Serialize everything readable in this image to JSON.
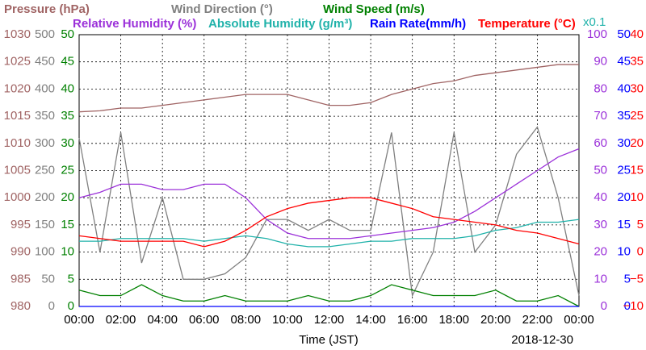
{
  "chart_data": {
    "type": "line",
    "xlabel": "Time (JST)",
    "date": "2018-12-30",
    "note": "x0.1",
    "x": [
      0,
      1,
      2,
      3,
      4,
      5,
      6,
      7,
      8,
      9,
      10,
      11,
      12,
      13,
      14,
      15,
      16,
      17,
      18,
      19,
      20,
      21,
      22,
      23,
      24
    ],
    "xlim": [
      0,
      24
    ],
    "xticks": [
      {
        "value": 0,
        "label": "00:00"
      },
      {
        "value": 2,
        "label": "02:00"
      },
      {
        "value": 4,
        "label": "04:00"
      },
      {
        "value": 6,
        "label": "06:00"
      },
      {
        "value": 8,
        "label": "08:00"
      },
      {
        "value": 10,
        "label": "10:00"
      },
      {
        "value": 12,
        "label": "12:00"
      },
      {
        "value": 14,
        "label": "14:00"
      },
      {
        "value": 16,
        "label": "16:00"
      },
      {
        "value": 18,
        "label": "18:00"
      },
      {
        "value": 20,
        "label": "20:00"
      },
      {
        "value": 22,
        "label": "22:00"
      },
      {
        "value": 24,
        "label": "00:00"
      }
    ],
    "grid": true,
    "axes": [
      {
        "side": "left",
        "color": "#a06464",
        "lim": [
          980,
          1030
        ],
        "ticks": [
          980,
          985,
          990,
          995,
          1000,
          1005,
          1010,
          1015,
          1020,
          1025,
          1030
        ]
      },
      {
        "side": "left",
        "color": "#808080",
        "lim": [
          0,
          500
        ],
        "ticks": [
          0,
          50,
          100,
          150,
          200,
          250,
          300,
          350,
          400,
          450,
          500
        ]
      },
      {
        "side": "left",
        "color": "#008000",
        "lim": [
          0,
          50
        ],
        "ticks": [
          0,
          5,
          10,
          15,
          20,
          25,
          30,
          35,
          40,
          45,
          50
        ]
      },
      {
        "side": "right",
        "color": "#9b30d9",
        "lim": [
          0,
          100
        ],
        "ticks": [
          0,
          10,
          20,
          30,
          40,
          50,
          60,
          70,
          80,
          90,
          100
        ]
      },
      {
        "side": "right",
        "color": "#0000ff",
        "lim": [
          0,
          50
        ],
        "ticks": [
          0,
          5,
          10,
          15,
          20,
          25,
          30,
          35,
          40,
          45,
          50
        ]
      },
      {
        "side": "right",
        "color": "#ff0000",
        "lim": [
          -10,
          40
        ],
        "ticks": [
          {
            "value": -10,
            "label": "−10"
          },
          {
            "value": -5,
            "label": "−5"
          },
          0,
          5,
          10,
          15,
          20,
          25,
          30,
          35,
          40
        ]
      }
    ],
    "series": [
      {
        "name": "Pressure (hPa)",
        "color": "#a06464",
        "axis": 0,
        "values": [
          1015.8,
          1016,
          1016.5,
          1016.5,
          1017,
          1017.5,
          1018,
          1018.5,
          1019,
          1019,
          1019,
          1018,
          1017,
          1017,
          1017.5,
          1019,
          1020,
          1021,
          1021.5,
          1022.5,
          1023,
          1023.5,
          1024,
          1024.5,
          1024.5
        ]
      },
      {
        "name": "Wind Direction (°)",
        "color": "#808080",
        "axis": 1,
        "values": [
          310,
          100,
          320,
          80,
          200,
          50,
          50,
          60,
          90,
          160,
          160,
          140,
          160,
          140,
          140,
          320,
          20,
          100,
          320,
          100,
          150,
          280,
          330,
          200,
          20
        ]
      },
      {
        "name": "Wind Speed (m/s)",
        "color": "#008000",
        "axis": 2,
        "values": [
          3,
          2,
          2,
          4,
          2,
          1,
          1,
          2,
          1,
          1,
          1,
          2,
          1,
          1,
          2,
          4,
          3,
          2,
          2,
          2,
          3,
          1,
          1,
          2,
          0
        ]
      },
      {
        "name": "Relative Humidity (%)",
        "color": "#9b30d9",
        "axis": 3,
        "values": [
          40,
          42,
          45,
          45,
          43,
          43,
          45,
          45,
          40,
          32,
          27,
          25,
          25,
          25,
          26,
          27,
          28,
          29,
          31,
          35,
          40,
          45,
          50,
          55,
          58
        ]
      },
      {
        "name": "Absolute Humidity (g/m³)",
        "color": "#20b2aa",
        "axis": 3,
        "values": [
          24,
          24,
          25,
          25,
          25,
          25,
          24,
          25,
          26,
          25,
          23,
          22,
          22,
          23,
          24,
          24,
          25,
          25,
          25,
          26,
          28,
          29,
          31,
          31,
          32
        ]
      },
      {
        "name": "Rain Rate(mm/h)",
        "color": "#0000ff",
        "axis": 4,
        "values": [
          0,
          0,
          0,
          0,
          0,
          0,
          0,
          0,
          0,
          0,
          0,
          0,
          0,
          0,
          0,
          0,
          0,
          0,
          0,
          0,
          0,
          0,
          0,
          0,
          0
        ]
      },
      {
        "name": "Temperature (°C)",
        "color": "#ff0000",
        "axis": 5,
        "values": [
          3,
          2.5,
          2,
          2,
          2,
          2,
          1,
          2,
          4,
          6.5,
          8,
          9,
          9.5,
          10,
          10,
          9,
          8,
          6.5,
          6,
          5.5,
          5,
          4,
          3.5,
          2.5,
          1.5
        ]
      }
    ]
  }
}
